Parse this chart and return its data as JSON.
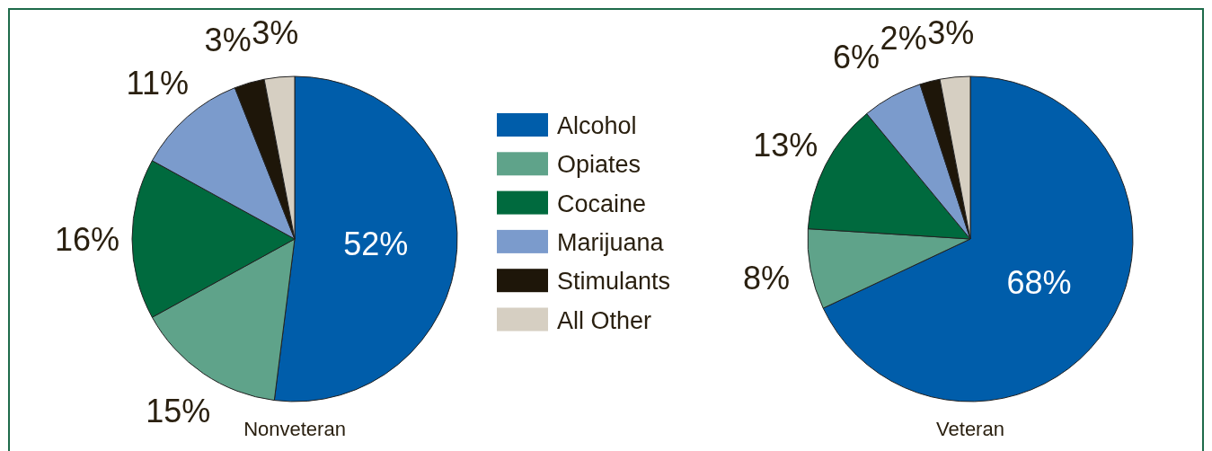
{
  "chart_data": [
    {
      "type": "pie",
      "title": "Nonveteran",
      "categories": [
        "Alcohol",
        "Opiates",
        "Cocaine",
        "Marijuana",
        "Stimulants",
        "All Other"
      ],
      "values": [
        52,
        15,
        16,
        11,
        3,
        3
      ],
      "value_labels": [
        "52%",
        "15%",
        "16%",
        "11%",
        "3%",
        "3%"
      ],
      "colors": [
        "#005daa",
        "#5fa38a",
        "#006a3e",
        "#7b9bcc",
        "#1e1609",
        "#d6cfc2"
      ],
      "legend": "right"
    },
    {
      "type": "pie",
      "title": "Veteran",
      "categories": [
        null,
        null,
        null,
        null,
        null,
        null
      ],
      "values": [
        68,
        8,
        13,
        6,
        2,
        3
      ],
      "value_labels": [
        "68%",
        "8%",
        "13%",
        "6%",
        "2%",
        "3%"
      ],
      "colors": [
        "#005daa",
        "#5fa38a",
        "#006a3e",
        "#7b9bcc",
        "#1e1609",
        "#d6cfc2"
      ]
    }
  ]
}
